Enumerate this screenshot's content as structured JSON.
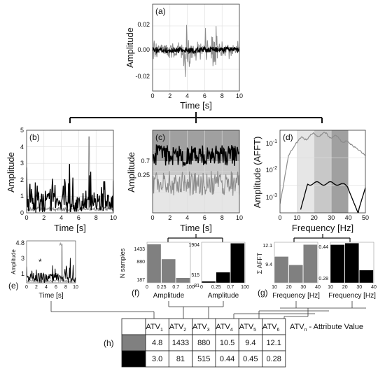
{
  "panels": {
    "a": {
      "letter": "(a)",
      "xlabel": "Time [s]",
      "ylabel": "Amplitude",
      "xticks": [
        "0",
        "2",
        "4",
        "6",
        "8",
        "10"
      ],
      "yticks": [
        "0.02",
        "0.00",
        "-0.02"
      ]
    },
    "b": {
      "letter": "(b)",
      "xlabel": "Time [s]",
      "ylabel": "Amplitude",
      "xticks": [
        "0",
        "2",
        "4",
        "6",
        "8",
        "10"
      ],
      "yticks": [
        "0",
        "1",
        "2",
        "3",
        "4",
        "5"
      ]
    },
    "c": {
      "letter": "(c)",
      "xlabel": "Time [s]",
      "ylabel": "Amplitude",
      "xticks": [
        "0",
        "2",
        "4",
        "6",
        "8",
        "10"
      ],
      "yticks": [
        "0.7",
        "0.25"
      ]
    },
    "d": {
      "letter": "(d)",
      "xlabel": "Frequency [Hz]",
      "ylabel": "Amplitude (AFFT)",
      "xticks": [
        "0",
        "10",
        "20",
        "30",
        "40",
        "50"
      ],
      "yticks": [
        "10",
        "10",
        "10"
      ],
      "yexps": [
        "-1",
        "-2",
        "-3"
      ]
    },
    "e": {
      "letter": "(e)",
      "xlabel": "Time [s]",
      "ylabel": "Amplitude",
      "xticks": [
        "0",
        "2",
        "4",
        "6",
        "8",
        "10"
      ],
      "yticks": [
        "4.8",
        "3",
        "1"
      ],
      "marker": "*"
    },
    "f": {
      "letter": "(f)",
      "ylabel": "N samples",
      "left": {
        "xlabel": "Amplitude",
        "yticks": [
          "1433",
          "880",
          "187"
        ],
        "xticks": [
          "0",
          "0.25",
          "0.7",
          "100"
        ]
      },
      "right": {
        "xlabel": "Amplitude",
        "yticks": [
          "1904",
          "515",
          "81"
        ],
        "xticks": [
          "0",
          "0.25",
          "0.7",
          "100"
        ]
      }
    },
    "g": {
      "letter": "(g)",
      "ylabel": "Σ AFFT",
      "left": {
        "xlabel": "Frequency [Hz]",
        "yticks": [
          "12.1",
          "9.4"
        ],
        "xticks": [
          "10",
          "20",
          "30",
          "40"
        ]
      },
      "right": {
        "xlabel": "Frequency [Hz]",
        "yticks": [
          "0.44",
          "0.28"
        ],
        "xticks": [
          "10",
          "20",
          "30",
          "40"
        ]
      }
    },
    "h": {
      "letter": "(h)"
    }
  },
  "legend_note": {
    "prefix": "ATV",
    "sub": "n",
    "rest": " - Attribute Value"
  },
  "table": {
    "headers": [
      {
        "base": "ATV",
        "sub": "1"
      },
      {
        "base": "ATV",
        "sub": "2"
      },
      {
        "base": "ATV",
        "sub": "3"
      },
      {
        "base": "ATV",
        "sub": "4"
      },
      {
        "base": "ATV",
        "sub": "5"
      },
      {
        "base": "ATV",
        "sub": "6"
      }
    ],
    "rows": [
      {
        "swatch": "#808080",
        "values": [
          "4.8",
          "1433",
          "880",
          "10.5",
          "9.4",
          "12.1"
        ]
      },
      {
        "swatch": "#000000",
        "values": [
          "3.0",
          "81",
          "515",
          "0.44",
          "0.45",
          "0.28"
        ]
      }
    ]
  },
  "colors": {
    "gray_series": "#8c8c8c",
    "black_series": "#000000",
    "band_dark": "#a0a0a0",
    "band_mid": "#c8c8c8",
    "band_light": "#e6e6e6"
  },
  "chart_data": [
    {
      "panel": "a",
      "type": "line",
      "xlim": [
        0,
        10
      ],
      "ylim": [
        -0.028,
        0.028
      ],
      "series": [
        {
          "color": "gray"
        },
        {
          "color": "black"
        }
      ]
    },
    {
      "panel": "b",
      "type": "line",
      "xlim": [
        0,
        10
      ],
      "ylim": [
        0,
        5
      ],
      "series": [
        {
          "color": "gray"
        },
        {
          "color": "black"
        }
      ]
    },
    {
      "panel": "c",
      "type": "line",
      "xlim": [
        0,
        10
      ],
      "series": [
        {
          "color": "gray"
        },
        {
          "color": "black"
        }
      ]
    },
    {
      "panel": "d",
      "type": "line",
      "xlim": [
        0,
        50
      ],
      "yscale": "log",
      "series": [
        {
          "color": "gray"
        },
        {
          "color": "black"
        }
      ]
    },
    {
      "panel": "f-left",
      "type": "bar",
      "categories": [
        "0-0.25",
        "0.25-0.7",
        "0.7-100"
      ],
      "values": [
        1433,
        880,
        187
      ]
    },
    {
      "panel": "f-right",
      "type": "bar",
      "categories": [
        "0-0.25",
        "0.25-0.7",
        "0.7-100"
      ],
      "values": [
        81,
        515,
        1904
      ]
    },
    {
      "panel": "g-left",
      "type": "bar",
      "categories": [
        "10-20",
        "20-30",
        "30-40"
      ],
      "values": [
        10.5,
        9.4,
        12.1
      ]
    },
    {
      "panel": "g-right",
      "type": "bar",
      "categories": [
        "10-20",
        "20-30",
        "30-40"
      ],
      "values": [
        0.44,
        0.45,
        0.28
      ]
    }
  ]
}
